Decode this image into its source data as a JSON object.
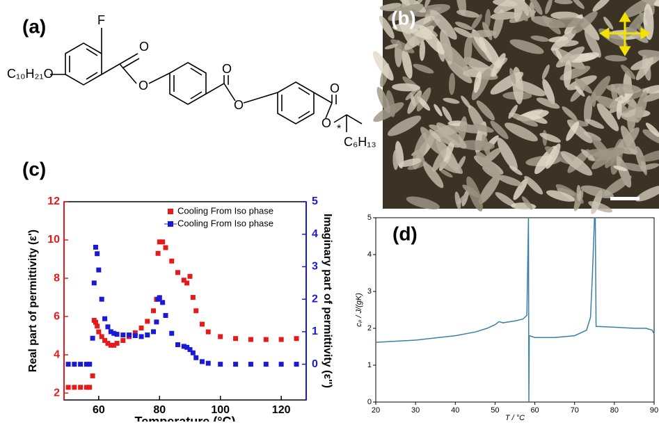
{
  "panels": {
    "a": "(a)",
    "b": "(b)",
    "c": "(c)",
    "d": "(d)"
  },
  "molecule": {
    "atoms": [
      "C₁₀H₂₁O",
      "F",
      "O",
      "O",
      "O",
      "O",
      "O",
      "O",
      "*",
      "C₆H₁₃"
    ]
  },
  "chart_data": [
    {
      "type": "scatter",
      "x_label": "Temperature (°C)",
      "y_label": "Real part of permittivity (ε')",
      "y2_label": "Imaginary part of permittivity (ε'')",
      "x": [
        50,
        52,
        54,
        56,
        57,
        58,
        58.5,
        59,
        59.5,
        60,
        61,
        62,
        63,
        64,
        65,
        66,
        68,
        70,
        72,
        74,
        76,
        78,
        79,
        79.5,
        80,
        81,
        82,
        84,
        86,
        88,
        89,
        90,
        91,
        92,
        94,
        96,
        100,
        105,
        110,
        115,
        120,
        125
      ],
      "series": [
        {
          "name": "Cooling From Iso phase",
          "color": "#e51a1a",
          "axis": "y",
          "values": [
            2.3,
            2.3,
            2.3,
            2.3,
            2.3,
            2.9,
            5.8,
            5.7,
            5.5,
            5.2,
            4.95,
            4.75,
            4.6,
            4.5,
            4.5,
            4.6,
            4.75,
            4.95,
            5.15,
            5.4,
            5.75,
            6.3,
            6.9,
            9.3,
            9.9,
            9.9,
            9.6,
            8.9,
            8.3,
            7.9,
            7.75,
            8.1,
            7.0,
            6.3,
            5.6,
            5.2,
            4.95,
            4.85,
            4.8,
            4.8,
            4.8,
            4.85
          ]
        },
        {
          "name": "Cooling From Iso phase",
          "color": "#1a1ad6",
          "axis": "y2",
          "values": [
            0,
            0,
            0,
            0,
            0,
            0.8,
            2.5,
            3.6,
            3.4,
            2.9,
            2.0,
            1.4,
            1.15,
            1.0,
            0.95,
            0.92,
            0.9,
            0.9,
            0.88,
            0.85,
            0.9,
            1.0,
            1.3,
            2.0,
            2.05,
            1.9,
            1.5,
            0.95,
            0.6,
            0.55,
            0.52,
            0.45,
            0.35,
            0.2,
            0.08,
            0.03,
            0,
            0,
            0,
            0,
            0,
            0
          ]
        }
      ],
      "xlim": [
        48.6,
        128.2
      ],
      "xticks": [
        60,
        80,
        100,
        120
      ],
      "ylim": [
        1.64,
        12
      ],
      "yticks": [
        2,
        4,
        6,
        8,
        10,
        12
      ],
      "y2lim": [
        -1.1,
        5
      ],
      "y2ticks": [
        0,
        1,
        2,
        3,
        4,
        5
      ],
      "legend": "top-right"
    },
    {
      "type": "line",
      "x_label": "T / °C",
      "y_label": "cₚ / J/(gK)",
      "x": [
        20,
        30,
        40,
        45,
        48,
        50,
        51,
        52,
        55,
        57,
        58,
        58.4,
        58.5,
        58.6,
        60,
        65,
        70,
        73,
        74,
        74.5,
        75,
        75.2,
        75.4,
        76,
        80,
        85,
        88,
        89.5,
        90
      ],
      "series": [
        {
          "name": "cp",
          "color": "#3a7fa8",
          "values": [
            1.62,
            1.68,
            1.8,
            1.9,
            2.0,
            2.1,
            2.18,
            2.15,
            2.2,
            2.25,
            2.35,
            5,
            0,
            1.8,
            1.75,
            1.75,
            1.8,
            1.95,
            2.3,
            3.5,
            5,
            5,
            2.05,
            2.05,
            2.03,
            2.0,
            2.0,
            1.95,
            1.85
          ]
        }
      ],
      "xlim": [
        20,
        90
      ],
      "xticks": [
        20,
        30,
        40,
        50,
        60,
        70,
        80,
        90
      ],
      "ylim": [
        0,
        5
      ],
      "yticks": [
        0,
        1,
        2,
        3,
        4,
        5
      ]
    }
  ]
}
